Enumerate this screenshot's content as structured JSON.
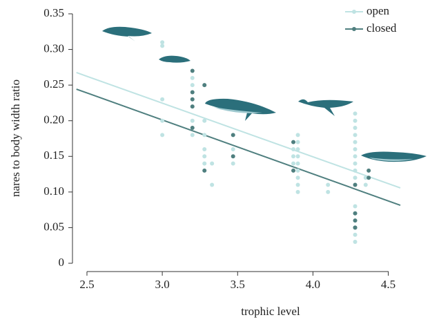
{
  "chart_data": {
    "type": "scatter",
    "x_label": "trophic level",
    "y_label": "nares to body width ratio",
    "xlim": [
      2.43,
      4.58
    ],
    "ylim": [
      0,
      0.35
    ],
    "xticks": [
      2.5,
      {
        "value": 3.0,
        "label": "3.0"
      },
      3.5,
      {
        "value": 4.0,
        "label": "4.0"
      },
      4.5
    ],
    "yticks": [
      0,
      0.05,
      {
        "value": 0.1,
        "label": "0.10"
      },
      0.15,
      {
        "value": 0.2,
        "label": "0.20"
      },
      0.25,
      {
        "value": 0.3,
        "label": "0.30"
      },
      0.35
    ],
    "legend": "top-right",
    "series": [
      {
        "name": "open",
        "color": "#bfe3e3",
        "x": [
          3.0,
          3.0,
          3.0,
          3.0,
          3.0,
          3.2,
          3.2,
          3.2,
          3.2,
          3.28,
          3.28,
          3.28,
          3.28,
          3.28,
          3.33,
          3.33,
          3.47,
          3.47,
          3.87,
          3.87,
          3.87,
          3.9,
          3.9,
          3.9,
          3.9,
          3.9,
          3.9,
          3.9,
          3.9,
          3.9,
          4.1,
          4.1,
          4.28,
          4.28,
          4.28,
          4.28,
          4.28,
          4.28,
          4.28,
          4.28,
          4.28,
          4.28,
          4.28,
          4.28,
          4.28,
          4.28,
          4.28,
          4.35,
          4.35
        ],
        "y": [
          0.31,
          0.305,
          0.23,
          0.2,
          0.18,
          0.26,
          0.25,
          0.2,
          0.18,
          0.2,
          0.18,
          0.16,
          0.15,
          0.14,
          0.14,
          0.11,
          0.16,
          0.14,
          0.16,
          0.15,
          0.14,
          0.18,
          0.17,
          0.16,
          0.15,
          0.14,
          0.13,
          0.12,
          0.11,
          0.1,
          0.11,
          0.1,
          0.21,
          0.2,
          0.19,
          0.18,
          0.17,
          0.16,
          0.15,
          0.14,
          0.13,
          0.12,
          0.11,
          0.08,
          0.07,
          0.04,
          0.03,
          0.12,
          0.11
        ],
        "trend": {
          "x": [
            2.43,
            4.58
          ],
          "y": [
            0.2676,
            0.1057
          ]
        }
      },
      {
        "name": "closed",
        "color": "#4f7f7f",
        "x": [
          3.2,
          3.2,
          3.2,
          3.2,
          3.2,
          3.28,
          3.28,
          3.47,
          3.47,
          3.87,
          3.87,
          4.28,
          4.28,
          4.28,
          4.28,
          4.28,
          4.37,
          4.37
        ],
        "y": [
          0.27,
          0.24,
          0.23,
          0.22,
          0.19,
          0.25,
          0.13,
          0.18,
          0.15,
          0.17,
          0.13,
          0.11,
          0.07,
          0.06,
          0.05,
          0.05,
          0.13,
          0.12
        ],
        "trend": {
          "x": [
            2.43,
            4.58
          ],
          "y": [
            0.2443,
            0.0814
          ]
        }
      }
    ]
  }
}
